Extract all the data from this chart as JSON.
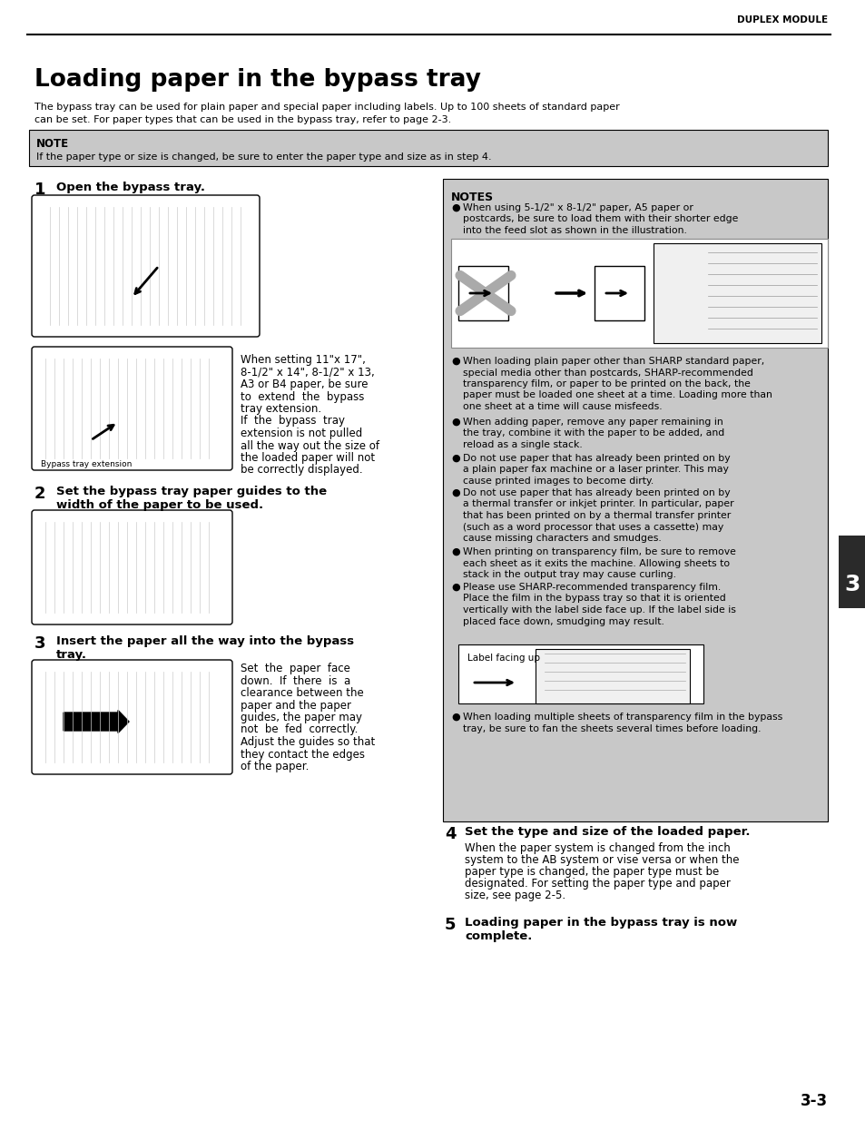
{
  "page_bg": "#ffffff",
  "header_text": "DUPLEX MODULE",
  "title": "Loading paper in the bypass tray",
  "intro_line1": "The bypass tray can be used for plain paper and special paper including labels. Up to 100 sheets of standard paper",
  "intro_line2": "can be set. For paper types that can be used in the bypass tray, refer to page 2-3.",
  "note_bg": "#c8c8c8",
  "note_title": "NOTE",
  "note_body": "If the paper type or size is changed, be sure to enter the paper type and size as in step 4.",
  "notes_box_bg": "#c8c8c8",
  "notes_title": "NOTES",
  "step1_num": "1",
  "step1_text": "Open the bypass tray.",
  "step1b_lines": [
    "When setting 11\"x 17\",",
    "8-1/2\" x 14\", 8-1/2\" x 13,",
    "A3 or B4 paper, be sure",
    "to  extend  the  bypass",
    "tray extension.",
    "If  the  bypass  tray",
    "extension is not pulled",
    "all the way out the size of",
    "the loaded paper will not",
    "be correctly displayed."
  ],
  "bypass_label": "Bypass tray extension",
  "step2_num": "2",
  "step2_line1": "Set the bypass tray paper guides to the",
  "step2_line2": "width of the paper to be used.",
  "step3_num": "3",
  "step3_line1": "Insert the paper all the way into the bypass",
  "step3_line2": "tray.",
  "step3b_lines": [
    "Set  the  paper  face",
    "down.  If  there  is  a",
    "clearance between the",
    "paper and the paper",
    "guides, the paper may",
    "not  be  fed  correctly.",
    "Adjust the guides so that",
    "they contact the edges",
    "of the paper."
  ],
  "step4_num": "4",
  "step4_text": "Set the type and size of the loaded paper.",
  "step4b_lines": [
    "When the paper system is changed from the inch",
    "system to the AB system or vise versa or when the",
    "paper type is changed, the paper type must be",
    "designated. For setting the paper type and paper",
    "size, see page 2-5."
  ],
  "step5_num": "5",
  "step5_line1": "Loading paper in the bypass tray is now",
  "step5_line2": "complete.",
  "notes_b1_lines": [
    "When using 5-1/2\" x 8-1/2\" paper, A5 paper or",
    "postcards, be sure to load them with their shorter edge",
    "into the feed slot as shown in the illustration."
  ],
  "notes_b2_lines": [
    "When loading plain paper other than SHARP standard paper,",
    "special media other than postcards, SHARP-recommended",
    "transparency film, or paper to be printed on the back, the",
    "paper must be loaded one sheet at a time. Loading more than",
    "one sheet at a time will cause misfeeds."
  ],
  "notes_b3_lines": [
    "When adding paper, remove any paper remaining in",
    "the tray, combine it with the paper to be added, and",
    "reload as a single stack."
  ],
  "notes_b4_lines": [
    "Do not use paper that has already been printed on by",
    "a plain paper fax machine or a laser printer. This may",
    "cause printed images to become dirty."
  ],
  "notes_b5_lines": [
    "Do not use paper that has already been printed on by",
    "a thermal transfer or inkjet printer. In particular, paper",
    "that has been printed on by a thermal transfer printer",
    "(such as a word processor that uses a cassette) may",
    "cause missing characters and smudges."
  ],
  "notes_b6_lines": [
    "When printing on transparency film, be sure to remove",
    "each sheet as it exits the machine. Allowing sheets to",
    "stack in the output tray may cause curling."
  ],
  "notes_b7_lines": [
    "Please use SHARP-recommended transparency film.",
    "Place the film in the bypass tray so that it is oriented",
    "vertically with the label side face up. If the label side is",
    "placed face down, smudging may result."
  ],
  "label_facing_up": "Label facing up",
  "notes_b8_lines": [
    "When loading multiple sheets of transparency film in the bypass",
    "tray, be sure to fan the sheets several times before loading."
  ],
  "tab_text": "3",
  "page_num": "3-3",
  "sidebar_bg": "#2a2a2a"
}
